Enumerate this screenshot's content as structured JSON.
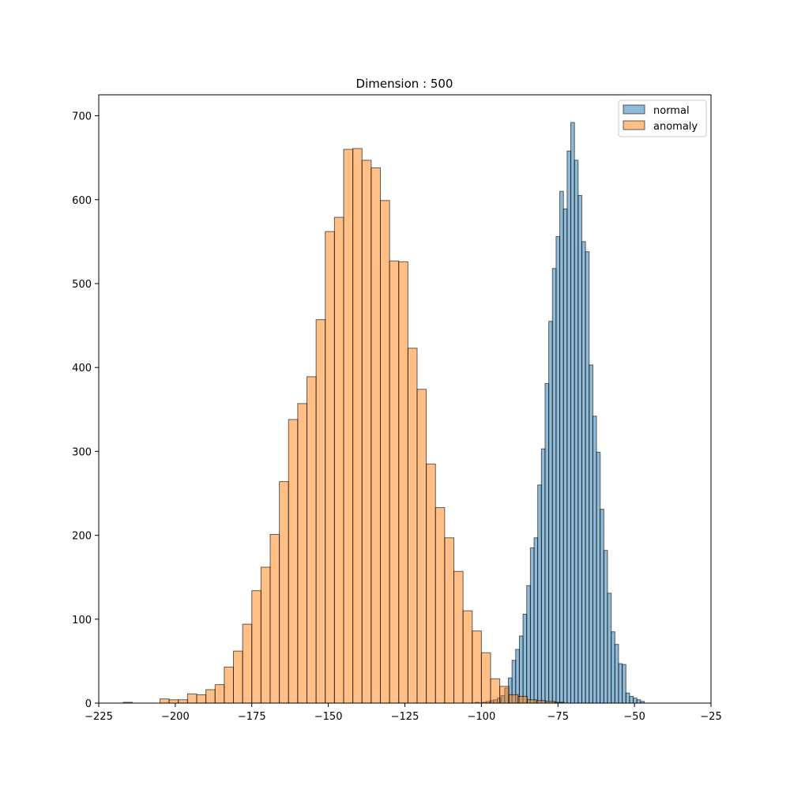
{
  "chart_data": {
    "type": "bar",
    "title": "Dimension : 500",
    "xlabel": "",
    "ylabel": "",
    "xlim": [
      -225,
      -25
    ],
    "ylim": [
      0,
      725
    ],
    "x_ticks": [
      -225,
      -200,
      -175,
      -150,
      -125,
      -100,
      -75,
      -50,
      -25
    ],
    "y_ticks": [
      0,
      100,
      200,
      300,
      400,
      500,
      600,
      700
    ],
    "legend_placement": "top-right",
    "grid": false,
    "series": [
      {
        "name": "normal",
        "color": "#1f77b4",
        "bin_start": -102.0,
        "bin_width": 1.2,
        "counts": [
          1,
          0,
          1,
          2,
          3,
          4,
          6,
          9,
          18,
          30,
          51,
          64,
          80,
          106,
          140,
          185,
          197,
          260,
          303,
          381,
          455,
          518,
          556,
          610,
          589,
          658,
          692,
          647,
          605,
          550,
          538,
          403,
          342,
          299,
          231,
          182,
          131,
          85,
          70,
          47,
          46,
          12,
          8,
          6,
          4,
          2
        ]
      },
      {
        "name": "anomaly",
        "color": "#ff7f0e",
        "bins": [
          [
            -217,
            1
          ],
          [
            -205,
            5
          ],
          [
            -202,
            4
          ],
          [
            -199,
            4
          ],
          [
            -196,
            11
          ],
          [
            -193,
            10
          ],
          [
            -190,
            16
          ],
          [
            -187,
            22
          ],
          [
            -184,
            43
          ],
          [
            -181,
            62
          ],
          [
            -178,
            94
          ],
          [
            -175,
            134
          ],
          [
            -172,
            162
          ],
          [
            -169,
            201
          ],
          [
            -166,
            264
          ],
          [
            -163,
            338
          ],
          [
            -160,
            357
          ],
          [
            -157,
            389
          ],
          [
            -154,
            457
          ],
          [
            -151,
            562
          ],
          [
            -148,
            579
          ],
          [
            -145,
            660
          ],
          [
            -142,
            661
          ],
          [
            -139,
            647
          ],
          [
            -136,
            638
          ],
          [
            -133,
            599
          ],
          [
            -130,
            527
          ],
          [
            -127,
            526
          ],
          [
            -124,
            423
          ],
          [
            -121,
            374
          ],
          [
            -118,
            285
          ],
          [
            -115,
            233
          ],
          [
            -112,
            197
          ],
          [
            -109,
            157
          ],
          [
            -106,
            110
          ],
          [
            -103,
            86
          ],
          [
            -100,
            60
          ],
          [
            -97,
            29
          ],
          [
            -94,
            20
          ],
          [
            -91,
            10
          ],
          [
            -88,
            8
          ],
          [
            -85,
            4
          ],
          [
            -82,
            3
          ],
          [
            -79,
            2
          ],
          [
            -76,
            1
          ]
        ]
      }
    ]
  }
}
